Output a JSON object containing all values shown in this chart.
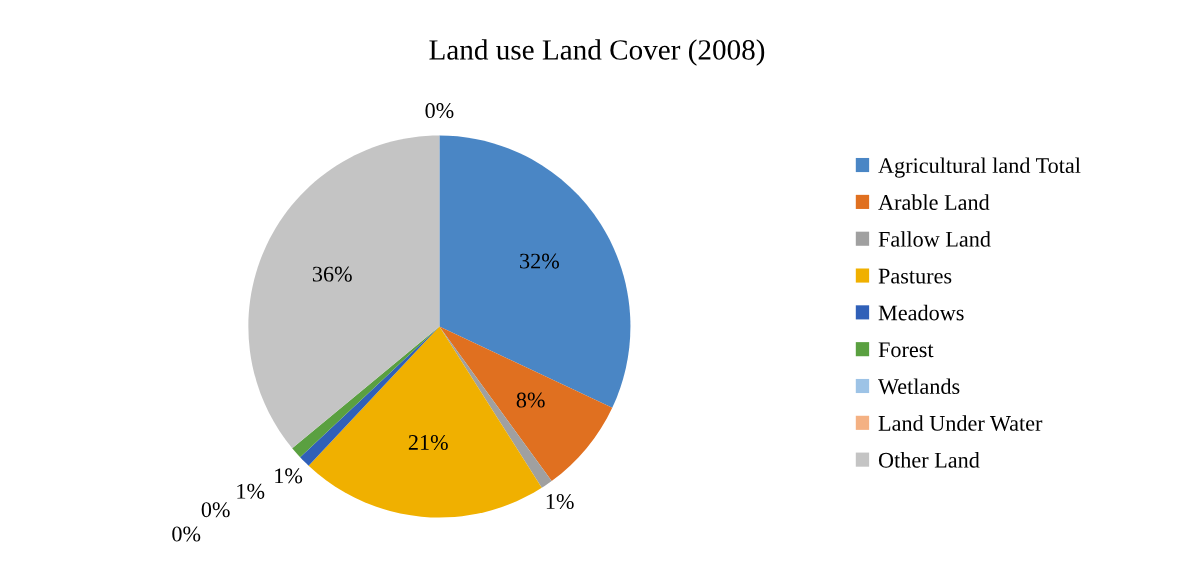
{
  "chart_data": {
    "type": "pie",
    "title": "Land use Land Cover (2008)",
    "categories": [
      "Agricultural land Total",
      "Arable Land",
      "Fallow Land",
      "Pastures",
      "Meadows",
      "Forest",
      "Wetlands",
      "Land Under Water",
      "Other Land",
      null
    ],
    "values": [
      32,
      8,
      1,
      21,
      1,
      1,
      0,
      0,
      36,
      0
    ],
    "colors": [
      "#4a86c5",
      "#e07020",
      "#a0a0a0",
      "#f0b000",
      "#3060b8",
      "#5aa040",
      "#9dc3e6",
      "#f4b183",
      "#c4c4c4",
      "#7cafdd"
    ],
    "value_labels": [
      "32%",
      "8%",
      "1%",
      "21%",
      "1%",
      "1%",
      "0%",
      "0%",
      "36%",
      "0%"
    ],
    "legend": "right"
  }
}
